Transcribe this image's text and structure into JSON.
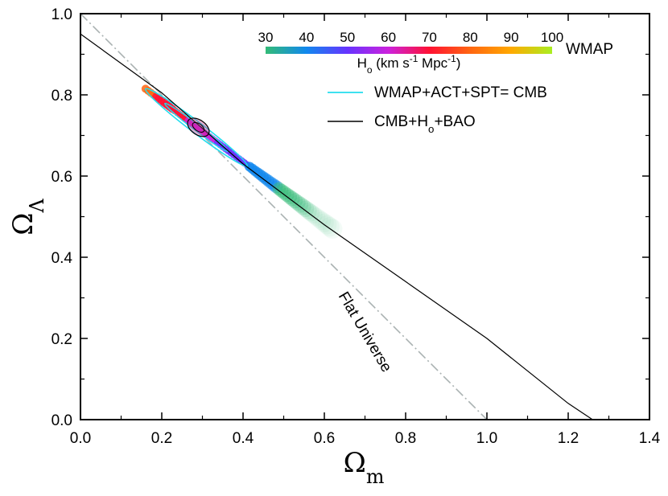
{
  "chart_data": {
    "type": "line",
    "title": "",
    "xlabel": {
      "base": "Ω",
      "sub": "m"
    },
    "ylabel": {
      "base": "Ω",
      "sub": "Λ"
    },
    "xlim": [
      0.0,
      1.4
    ],
    "ylim": [
      0.0,
      1.0
    ],
    "xticks": [
      "0.0",
      "0.2",
      "0.4",
      "0.6",
      "0.8",
      "1.0",
      "1.2",
      "1.4"
    ],
    "yticks": [
      "0.0",
      "0.2",
      "0.4",
      "0.6",
      "0.8",
      "1.0"
    ],
    "grid": false,
    "legend_position": "top-right",
    "colorbar": {
      "label_parts": [
        "H",
        "o",
        " (km s",
        "-1",
        " Mpc",
        "-1",
        ")"
      ],
      "ticks": [
        "30",
        "40",
        "50",
        "60",
        "70",
        "80",
        "90",
        "100"
      ],
      "range": [
        30,
        100
      ],
      "dataset": "WMAP",
      "colors": [
        "#33bb77",
        "#1188ee",
        "#6633ff",
        "#cc22dd",
        "#ff1133",
        "#ff6611",
        "#ffaa00",
        "#aaee22"
      ]
    },
    "series": [
      {
        "name_parts": [
          "WMAP+ACT+SPT= CMB"
        ],
        "kind": "contour",
        "color": "#22ddee",
        "center": [
          0.285,
          0.72
        ],
        "major_end": [
          0.16,
          0.815
        ],
        "minor_halfwidth": 0.014
      },
      {
        "name_parts": [
          "CMB+H",
          "o",
          "+BAO"
        ],
        "kind": "degeneracy-line+contour",
        "color": "#000000",
        "x": [
          0.0,
          0.2,
          0.4,
          0.6,
          0.8,
          1.0,
          1.2,
          1.26
        ],
        "y": [
          0.95,
          0.805,
          0.63,
          0.48,
          0.34,
          0.2,
          0.04,
          0.0
        ],
        "contour_center": [
          0.29,
          0.72
        ],
        "contour_halfaxes": [
          0.03,
          0.018
        ]
      },
      {
        "name": "Flat Universe",
        "kind": "reference-line",
        "color": "#aab2b2",
        "x": [
          0.0,
          1.0
        ],
        "y": [
          1.0,
          0.0
        ]
      }
    ],
    "annotations": [
      {
        "text": "Flat Universe",
        "x": 0.69,
        "y": 0.21
      }
    ]
  }
}
